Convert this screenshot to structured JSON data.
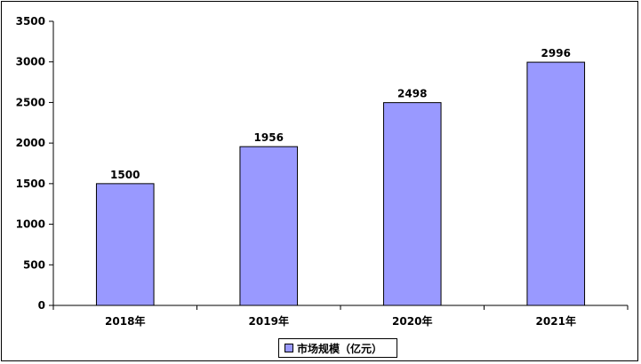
{
  "chart_data": {
    "type": "bar",
    "categories": [
      "2018年",
      "2019年",
      "2020年",
      "2021年"
    ],
    "series": [
      {
        "name": "市场规模（亿元）",
        "values": [
          1500,
          1956,
          2498,
          2996
        ]
      }
    ],
    "ylim": [
      0,
      3500
    ],
    "yticks": [
      0,
      500,
      1000,
      1500,
      2000,
      2500,
      3000,
      3500
    ],
    "ytick_labels": [
      "0",
      "500",
      "1000",
      "1500",
      "2000",
      "2500",
      "3000",
      "3500"
    ],
    "data_labels": [
      "1500",
      "1956",
      "2498",
      "2996"
    ],
    "legend_position": "bottom",
    "grid": false,
    "bar_color": "#9999ff"
  }
}
